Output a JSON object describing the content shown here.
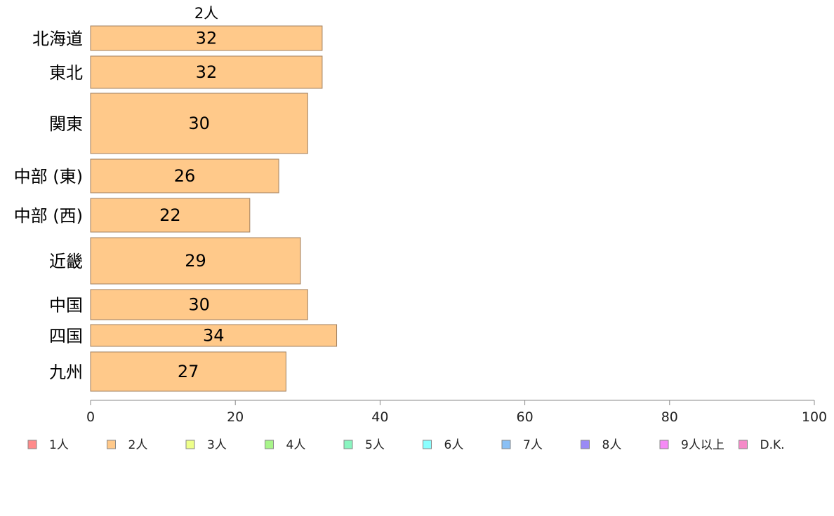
{
  "chart_data": {
    "type": "bar",
    "orientation": "horizontal",
    "stacked": true,
    "top_label": "2人",
    "categories": [
      "北海道",
      "東北",
      "関東",
      "中部 (東)",
      "中部 (西)",
      "近畿",
      "中国",
      "四国",
      "九州"
    ],
    "series": [
      {
        "name": "1人",
        "color": "#ff8a8a",
        "values": [
          0,
          0,
          0,
          0,
          0,
          0,
          0,
          0,
          0
        ]
      },
      {
        "name": "2人",
        "color": "#ffc98a",
        "values": [
          32,
          32,
          30,
          26,
          22,
          29,
          30,
          34,
          27
        ]
      },
      {
        "name": "3人",
        "color": "#eeff8a",
        "values": [
          0,
          0,
          0,
          0,
          0,
          0,
          0,
          0,
          0
        ]
      },
      {
        "name": "4人",
        "color": "#a8f58a",
        "values": [
          0,
          0,
          0,
          0,
          0,
          0,
          0,
          0,
          0
        ]
      },
      {
        "name": "5人",
        "color": "#8af5c0",
        "values": [
          0,
          0,
          0,
          0,
          0,
          0,
          0,
          0,
          0
        ]
      },
      {
        "name": "6人",
        "color": "#8affff",
        "values": [
          0,
          0,
          0,
          0,
          0,
          0,
          0,
          0,
          0
        ]
      },
      {
        "name": "7人",
        "color": "#8ac0f5",
        "values": [
          0,
          0,
          0,
          0,
          0,
          0,
          0,
          0,
          0
        ]
      },
      {
        "name": "8人",
        "color": "#9a8af5",
        "values": [
          0,
          0,
          0,
          0,
          0,
          0,
          0,
          0,
          0
        ]
      },
      {
        "name": "9人以上",
        "color": "#f58af5",
        "values": [
          0,
          0,
          0,
          0,
          0,
          0,
          0,
          0,
          0
        ]
      },
      {
        "name": "D.K.",
        "color": "#f58ac8",
        "values": [
          0,
          0,
          0,
          0,
          0,
          0,
          0,
          0,
          0
        ]
      }
    ],
    "xlim": [
      0,
      100
    ],
    "xticks": [
      "0",
      "20",
      "40",
      "60",
      "80",
      "100"
    ],
    "grid": false,
    "legend": "bottom"
  }
}
